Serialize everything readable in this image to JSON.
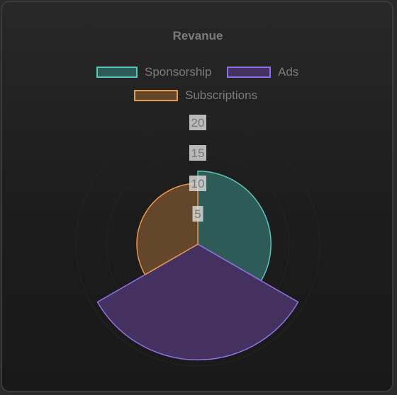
{
  "chart_data": {
    "type": "polarArea",
    "title": "Revanue",
    "categories": [
      "Sponsorship",
      "Ads",
      "Subscriptions"
    ],
    "values": [
      12,
      19,
      10
    ],
    "r_ticks": [
      5,
      10,
      15,
      20
    ],
    "r_range": [
      0,
      20
    ],
    "legend_position": "top",
    "colors": {
      "Sponsorship": {
        "fill": "#2e5b57",
        "stroke": "#5cc3b7"
      },
      "Ads": {
        "fill": "#45315f",
        "stroke": "#9070e6"
      },
      "Subscriptions": {
        "fill": "#64462a",
        "stroke": "#e79a4e"
      }
    }
  }
}
